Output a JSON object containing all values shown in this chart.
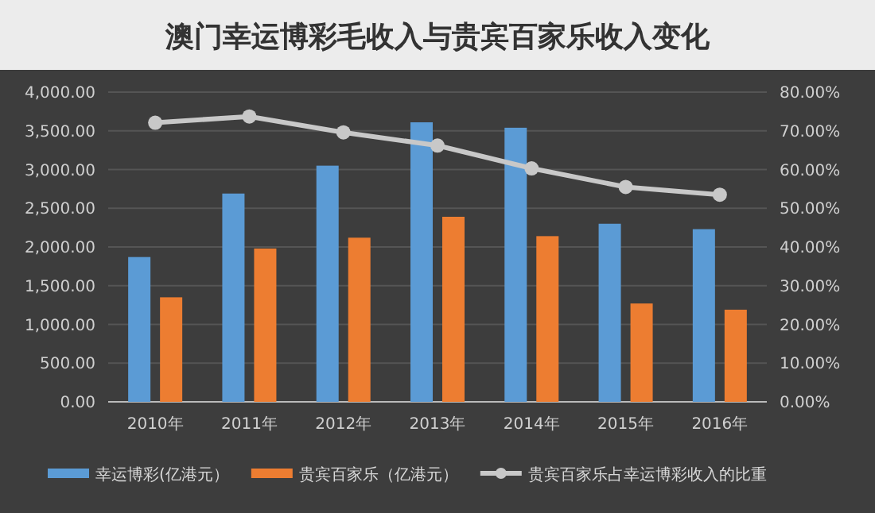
{
  "chart_data": {
    "type": "bar",
    "title": "澳门幸运博彩毛收入与贵宾百家乐收入变化",
    "categories": [
      "2010年",
      "2011年",
      "2012年",
      "2013年",
      "2014年",
      "2015年",
      "2016年"
    ],
    "series": [
      {
        "name": "幸运博彩(亿港元）",
        "color": "#5b9bd5",
        "values": [
          1870,
          2690,
          3050,
          3610,
          3540,
          2300,
          2230
        ]
      },
      {
        "name": "贵宾百家乐（亿港元）",
        "color": "#ed7d31",
        "values": [
          1350,
          1980,
          2120,
          2390,
          2140,
          1270,
          1190
        ]
      },
      {
        "name": "贵宾百家乐占幸运博彩收入的比重",
        "color": "#c8c8c8",
        "type": "line",
        "axis": "y2",
        "values": [
          72.1,
          73.7,
          69.6,
          66.2,
          60.3,
          55.5,
          53.5
        ]
      }
    ],
    "ylim": [
      0,
      4000
    ],
    "yticks": [
      {
        "value": 0,
        "label": "0.00"
      },
      {
        "value": 500,
        "label": "500.00"
      },
      {
        "value": 1000,
        "label": "1,000.00"
      },
      {
        "value": 1500,
        "label": "1,500.00"
      },
      {
        "value": 2000,
        "label": "2,000.00"
      },
      {
        "value": 2500,
        "label": "2,500.00"
      },
      {
        "value": 3000,
        "label": "3,000.00"
      },
      {
        "value": 3500,
        "label": "3,500.00"
      },
      {
        "value": 4000,
        "label": "4,000.00"
      }
    ],
    "y2lim": [
      0,
      80
    ],
    "y2ticks": [
      {
        "value": 0,
        "label": "0.00%"
      },
      {
        "value": 10,
        "label": "10.00%"
      },
      {
        "value": 20,
        "label": "20.00%"
      },
      {
        "value": 30,
        "label": "30.00%"
      },
      {
        "value": 40,
        "label": "40.00%"
      },
      {
        "value": 50,
        "label": "50.00%"
      },
      {
        "value": 60,
        "label": "60.00%"
      },
      {
        "value": 70,
        "label": "70.00%"
      },
      {
        "value": 80,
        "label": "80.00%"
      }
    ],
    "grid": "y",
    "legend": "bottom",
    "marker": "circle"
  }
}
